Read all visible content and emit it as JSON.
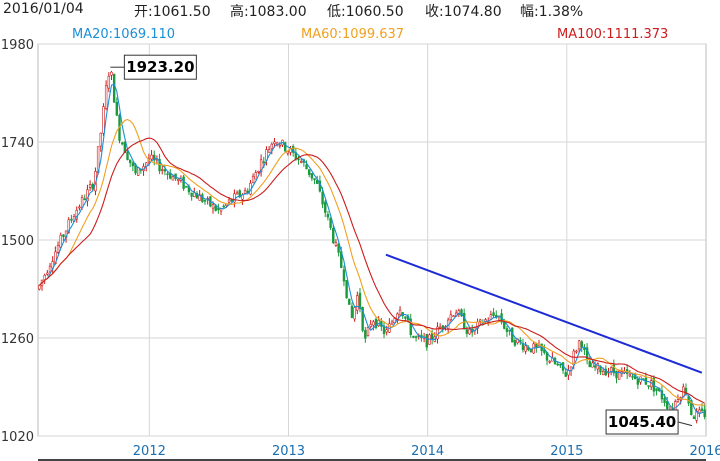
{
  "header": {
    "date": "2016/01/04",
    "open": "开:1061.50",
    "high": "高:1083.00",
    "low": "低:1060.50",
    "close": "收:1074.80",
    "change": "幅:1.38%"
  },
  "ma_labels": {
    "ma20": "MA20:1069.110",
    "ma60": "MA60:1099.637",
    "ma100": "MA100:1111.373"
  },
  "colors": {
    "ma20": "#1a8fd6",
    "ma60": "#f0a020",
    "ma100": "#cc1d1d",
    "trendline": "#1c2bd6",
    "up": "#d01818",
    "down": "#1a9a3a",
    "axis_text": "#1a6db0"
  },
  "chart_data": {
    "type": "candlestick",
    "y_ticks": [
      1020,
      1260,
      1500,
      1740,
      1980
    ],
    "ylim": [
      1020,
      1980
    ],
    "x_ticks": [
      "2012",
      "2013",
      "2014",
      "2015",
      "2016"
    ],
    "xlim": [
      2011.2,
      2016.0
    ],
    "price_path": [
      [
        2011.2,
        1380
      ],
      [
        2011.3,
        1455
      ],
      [
        2011.45,
        1560
      ],
      [
        2011.6,
        1640
      ],
      [
        2011.65,
        1760
      ],
      [
        2011.7,
        1900
      ],
      [
        2011.72,
        1923
      ],
      [
        2011.78,
        1760
      ],
      [
        2011.9,
        1660
      ],
      [
        2012.0,
        1700
      ],
      [
        2012.15,
        1660
      ],
      [
        2012.3,
        1620
      ],
      [
        2012.5,
        1570
      ],
      [
        2012.6,
        1600
      ],
      [
        2012.7,
        1620
      ],
      [
        2012.8,
        1690
      ],
      [
        2012.9,
        1750
      ],
      [
        2013.0,
        1720
      ],
      [
        2013.1,
        1690
      ],
      [
        2013.2,
        1640
      ],
      [
        2013.3,
        1530
      ],
      [
        2013.4,
        1410
      ],
      [
        2013.45,
        1300
      ],
      [
        2013.5,
        1370
      ],
      [
        2013.55,
        1250
      ],
      [
        2013.6,
        1310
      ],
      [
        2013.7,
        1270
      ],
      [
        2013.8,
        1340
      ],
      [
        2013.9,
        1260
      ],
      [
        2014.0,
        1250
      ],
      [
        2014.1,
        1290
      ],
      [
        2014.15,
        1310
      ],
      [
        2014.2,
        1330
      ],
      [
        2014.3,
        1270
      ],
      [
        2014.4,
        1300
      ],
      [
        2014.5,
        1320
      ],
      [
        2014.6,
        1260
      ],
      [
        2014.7,
        1240
      ],
      [
        2014.8,
        1230
      ],
      [
        2014.9,
        1200
      ],
      [
        2015.0,
        1170
      ],
      [
        2015.05,
        1220
      ],
      [
        2015.1,
        1260
      ],
      [
        2015.15,
        1190
      ],
      [
        2015.3,
        1180
      ],
      [
        2015.5,
        1160
      ],
      [
        2015.6,
        1150
      ],
      [
        2015.7,
        1110
      ],
      [
        2015.75,
        1080
      ],
      [
        2015.8,
        1120
      ],
      [
        2015.85,
        1140
      ],
      [
        2015.9,
        1070
      ],
      [
        2016.0,
        1075
      ]
    ],
    "trendline": [
      [
        2013.7,
        1464
      ],
      [
        2015.97,
        1175
      ]
    ],
    "annotations": [
      {
        "text": "1923.20",
        "x": 2011.72,
        "y": 1923.2,
        "side": "right"
      },
      {
        "text": "1045.40",
        "x": 2015.9,
        "y": 1045.4,
        "side": "left"
      }
    ]
  }
}
